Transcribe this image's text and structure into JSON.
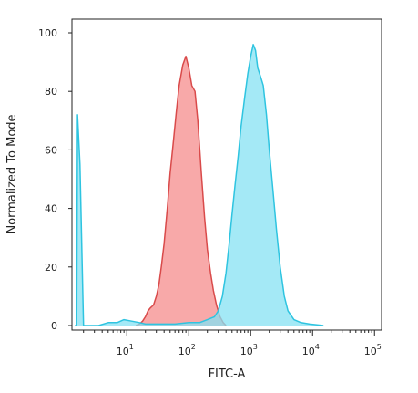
{
  "chart_data": {
    "type": "area",
    "title": "",
    "xlabel": "FITC-A",
    "ylabel": "Normalized To Mode",
    "x_scale": "log",
    "xlim": [
      1.3,
      130000
    ],
    "ylim": [
      0,
      100
    ],
    "grid": false,
    "legend": "none",
    "y_ticks": [
      0,
      20,
      40,
      60,
      80,
      100
    ],
    "y_tick_labels": [
      "0",
      "20",
      "40",
      "60",
      "80",
      "100"
    ],
    "x_ticks": [
      10,
      100,
      1000,
      10000,
      100000
    ],
    "x_tick_labels": [
      {
        "base": "10",
        "exp": "1"
      },
      {
        "base": "10",
        "exp": "2"
      },
      {
        "base": "10",
        "exp": "3"
      },
      {
        "base": "10",
        "exp": "4"
      },
      {
        "base": "10",
        "exp": "5"
      }
    ],
    "series": [
      {
        "color": "#d94a4a",
        "fill": "#f58c8c",
        "points": [
          [
            14,
            0
          ],
          [
            16,
            0.5
          ],
          [
            18,
            1.5
          ],
          [
            20,
            3
          ],
          [
            22,
            5
          ],
          [
            24,
            6
          ],
          [
            27,
            7
          ],
          [
            30,
            10
          ],
          [
            33,
            14
          ],
          [
            36,
            20
          ],
          [
            40,
            28
          ],
          [
            45,
            40
          ],
          [
            50,
            52
          ],
          [
            56,
            62
          ],
          [
            63,
            73
          ],
          [
            70,
            82
          ],
          [
            80,
            89
          ],
          [
            90,
            92
          ],
          [
            100,
            88
          ],
          [
            112,
            82
          ],
          [
            126,
            80
          ],
          [
            140,
            70
          ],
          [
            160,
            52
          ],
          [
            180,
            37
          ],
          [
            200,
            26
          ],
          [
            225,
            18
          ],
          [
            250,
            12
          ],
          [
            280,
            7
          ],
          [
            320,
            3
          ],
          [
            360,
            1
          ],
          [
            400,
            0
          ]
        ]
      },
      {
        "color": "#2ec4e0",
        "fill": "#86e1f3",
        "points": [
          [
            1.45,
            0
          ],
          [
            1.55,
            0
          ],
          [
            1.6,
            72
          ],
          [
            1.75,
            55
          ],
          [
            2.0,
            0
          ],
          [
            3.5,
            0
          ],
          [
            5,
            1
          ],
          [
            7,
            1
          ],
          [
            9,
            2
          ],
          [
            12,
            1.5
          ],
          [
            16,
            1
          ],
          [
            20,
            0.5
          ],
          [
            30,
            0.5
          ],
          [
            60,
            0.5
          ],
          [
            100,
            1
          ],
          [
            150,
            1
          ],
          [
            200,
            2
          ],
          [
            260,
            3
          ],
          [
            300,
            5
          ],
          [
            350,
            10
          ],
          [
            400,
            18
          ],
          [
            450,
            28
          ],
          [
            500,
            38
          ],
          [
            560,
            48
          ],
          [
            630,
            58
          ],
          [
            700,
            68
          ],
          [
            800,
            78
          ],
          [
            900,
            86
          ],
          [
            1000,
            92
          ],
          [
            1100,
            96
          ],
          [
            1200,
            94
          ],
          [
            1300,
            88
          ],
          [
            1450,
            85
          ],
          [
            1600,
            82
          ],
          [
            1800,
            72
          ],
          [
            2000,
            60
          ],
          [
            2300,
            46
          ],
          [
            2600,
            33
          ],
          [
            3000,
            20
          ],
          [
            3500,
            10
          ],
          [
            4000,
            5
          ],
          [
            5000,
            2
          ],
          [
            6500,
            1
          ],
          [
            9000,
            0.5
          ],
          [
            15000,
            0
          ]
        ]
      }
    ]
  }
}
